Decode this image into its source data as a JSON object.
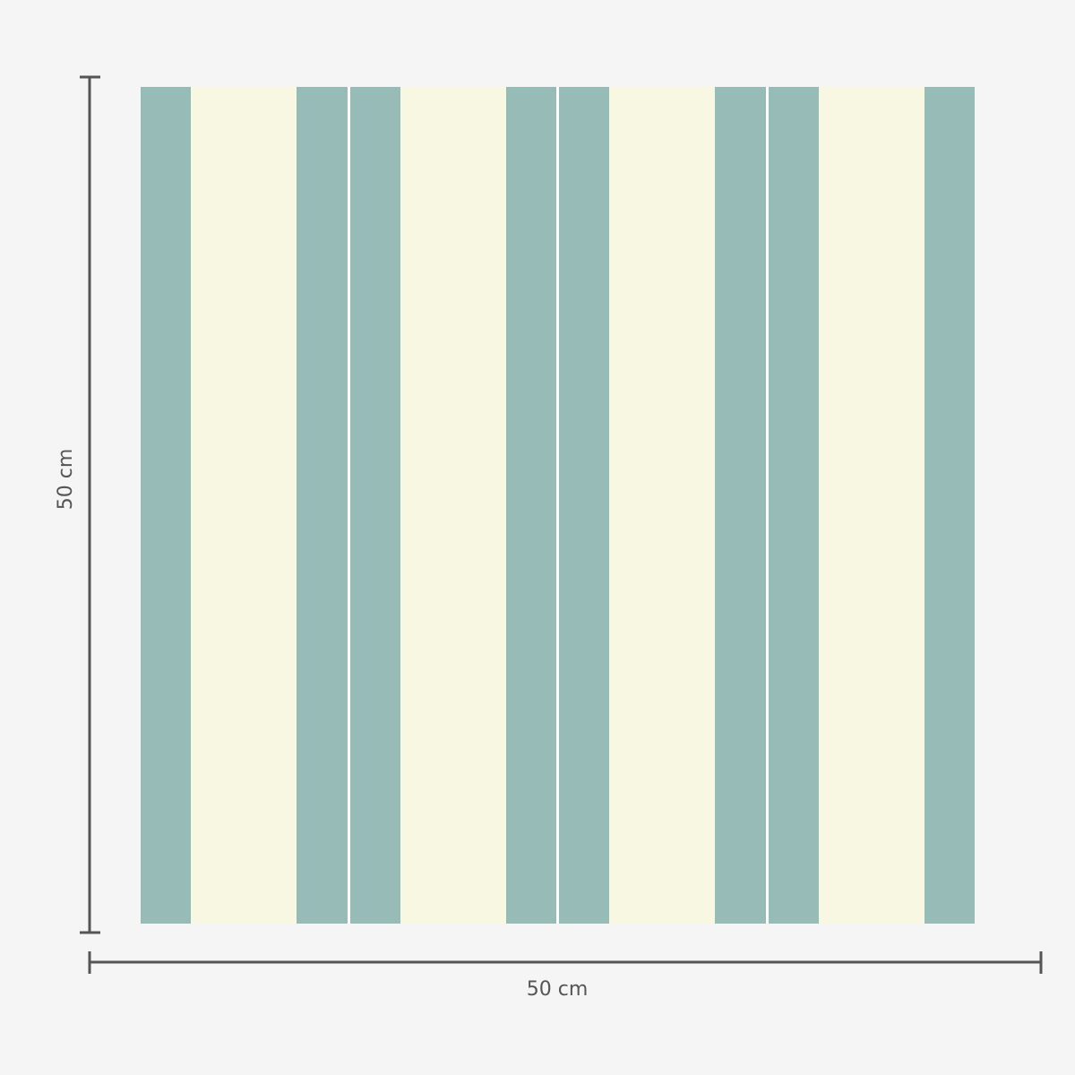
{
  "dimensions": {
    "height_label": "50 cm",
    "width_label": "50 cm"
  },
  "colors": {
    "background": "#f5f5f5",
    "teal": "#97bcb8",
    "cream": "#f8f8e2",
    "separator": "#ffffff",
    "dimension_line": "#555555"
  }
}
